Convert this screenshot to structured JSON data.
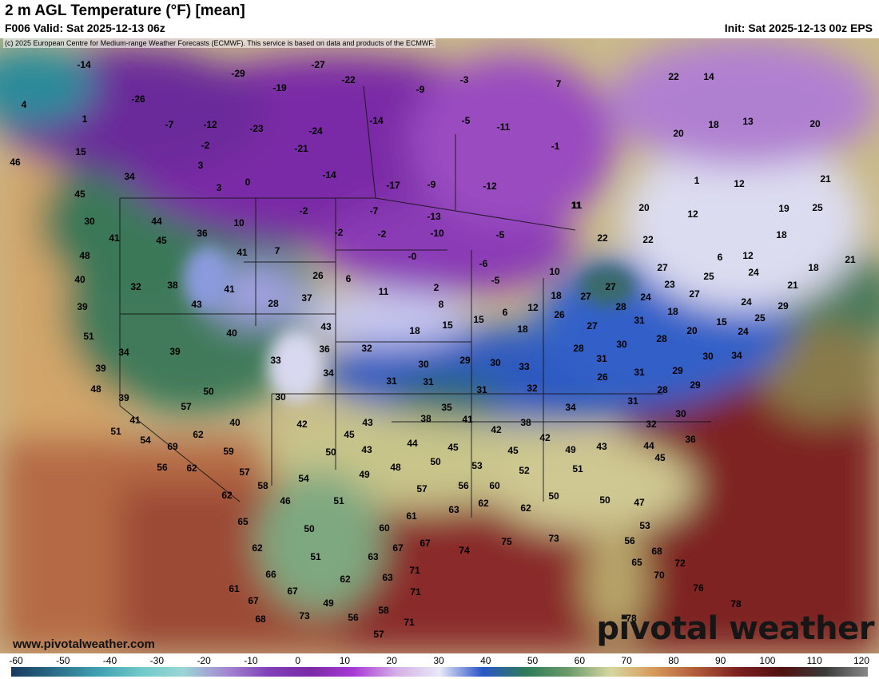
{
  "header": {
    "title": "2 m AGL Temperature (°F) [mean]",
    "valid": "F006 Valid: Sat 2025-12-13 06z",
    "init": "Init: Sat 2025-12-13 00z EPS"
  },
  "credit": "(c) 2025 European Centre for Medium-range Weather Forecasts (ECMWF). This service is based on data and products of the ECMWF.",
  "website": "www.pivotalweather.com",
  "brand": "pivotal weather",
  "colorbar": {
    "ticks": [
      "-60",
      "-50",
      "-40",
      "-30",
      "-20",
      "-10",
      "0",
      "10",
      "20",
      "30",
      "40",
      "50",
      "60",
      "70",
      "80",
      "90",
      "100",
      "110",
      "120"
    ],
    "colors": [
      "#1a3a5c",
      "#2b6c8a",
      "#3f9fb0",
      "#6fc8c8",
      "#9ad6d6",
      "#a58ad0",
      "#8040b8",
      "#7a2ba6",
      "#a83ad6",
      "#d6b0e6",
      "#e8e8f8",
      "#2b55c8",
      "#2e7a5a",
      "#6b9a6a",
      "#d6d6a0",
      "#d69a5a",
      "#b05a3a",
      "#7a2020",
      "#501010",
      "#3a3a3a",
      "#888888"
    ]
  },
  "temperatures": [
    {
      "v": "-14"
    },
    {
      "v": "-29"
    },
    {
      "v": "-27"
    },
    {
      "v": "-22"
    },
    {
      "v": "-9"
    },
    {
      "v": "-3"
    },
    {
      "v": "7"
    },
    {
      "v": "-26"
    },
    {
      "v": "-19"
    },
    {
      "v": "4"
    },
    {
      "v": "1"
    },
    {
      "v": "-7"
    },
    {
      "v": "-12"
    },
    {
      "v": "-23"
    },
    {
      "v": "-24"
    },
    {
      "v": "-14"
    },
    {
      "v": "-5"
    },
    {
      "v": "-11"
    },
    {
      "v": "15"
    },
    {
      "v": "-2"
    },
    {
      "v": "-21"
    },
    {
      "v": "-1"
    },
    {
      "v": "46"
    },
    {
      "v": "3"
    },
    {
      "v": "34"
    },
    {
      "v": "0"
    },
    {
      "v": "-14"
    },
    {
      "v": "-17"
    },
    {
      "v": "-9"
    },
    {
      "v": "-12"
    },
    {
      "v": "3"
    },
    {
      "v": "45"
    },
    {
      "v": "11"
    },
    {
      "v": "-7"
    },
    {
      "v": "-2"
    },
    {
      "v": "-13"
    },
    {
      "v": "30"
    },
    {
      "v": "44"
    },
    {
      "v": "10"
    },
    {
      "v": "-2"
    },
    {
      "v": "-2"
    },
    {
      "v": "-10"
    },
    {
      "v": "-5"
    },
    {
      "v": "36"
    },
    {
      "v": "41"
    },
    {
      "v": "45"
    },
    {
      "v": "48"
    },
    {
      "v": "41"
    },
    {
      "v": "7"
    },
    {
      "v": "-0"
    },
    {
      "v": "-6"
    },
    {
      "v": "40"
    },
    {
      "v": "32"
    },
    {
      "v": "38"
    },
    {
      "v": "26"
    },
    {
      "v": "6"
    },
    {
      "v": "2"
    },
    {
      "v": "-5"
    },
    {
      "v": "39"
    },
    {
      "v": "43"
    },
    {
      "v": "41"
    },
    {
      "v": "28"
    },
    {
      "v": "37"
    },
    {
      "v": "11"
    },
    {
      "v": "8"
    },
    {
      "v": "6"
    },
    {
      "v": "51"
    },
    {
      "v": "40"
    },
    {
      "v": "43"
    },
    {
      "v": "18"
    },
    {
      "v": "15"
    },
    {
      "v": "15"
    },
    {
      "v": "18"
    },
    {
      "v": "34"
    },
    {
      "v": "39"
    },
    {
      "v": "33"
    },
    {
      "v": "36"
    },
    {
      "v": "32"
    },
    {
      "v": "39"
    },
    {
      "v": "34"
    },
    {
      "v": "30"
    },
    {
      "v": "29"
    },
    {
      "v": "30"
    },
    {
      "v": "33"
    },
    {
      "v": "48"
    },
    {
      "v": "31"
    },
    {
      "v": "31"
    },
    {
      "v": "31"
    },
    {
      "v": "50"
    },
    {
      "v": "39"
    },
    {
      "v": "30"
    },
    {
      "v": "32"
    },
    {
      "v": "57"
    },
    {
      "v": "35"
    },
    {
      "v": "41"
    },
    {
      "v": "38"
    },
    {
      "v": "41"
    },
    {
      "v": "42"
    },
    {
      "v": "43"
    },
    {
      "v": "40"
    },
    {
      "v": "43"
    },
    {
      "v": "38"
    },
    {
      "v": "42"
    },
    {
      "v": "42"
    },
    {
      "v": "51"
    },
    {
      "v": "54"
    },
    {
      "v": "69"
    },
    {
      "v": "62"
    },
    {
      "v": "45"
    },
    {
      "v": "44"
    },
    {
      "v": "45"
    },
    {
      "v": "45"
    },
    {
      "v": "49"
    },
    {
      "v": "59"
    },
    {
      "v": "50"
    },
    {
      "v": "43"
    },
    {
      "v": "56"
    },
    {
      "v": "62"
    },
    {
      "v": "57"
    },
    {
      "v": "48"
    },
    {
      "v": "50"
    },
    {
      "v": "53"
    },
    {
      "v": "52"
    },
    {
      "v": "51"
    },
    {
      "v": "49"
    },
    {
      "v": "54"
    },
    {
      "v": "58"
    },
    {
      "v": "62"
    },
    {
      "v": "46"
    },
    {
      "v": "51"
    },
    {
      "v": "57"
    },
    {
      "v": "56"
    },
    {
      "v": "60"
    },
    {
      "v": "50"
    },
    {
      "v": "50"
    },
    {
      "v": "63"
    },
    {
      "v": "62"
    },
    {
      "v": "62"
    },
    {
      "v": "65"
    },
    {
      "v": "50"
    },
    {
      "v": "60"
    },
    {
      "v": "61"
    },
    {
      "v": "62"
    },
    {
      "v": "51"
    },
    {
      "v": "63"
    },
    {
      "v": "67"
    },
    {
      "v": "67"
    },
    {
      "v": "74"
    },
    {
      "v": "75"
    },
    {
      "v": "73"
    },
    {
      "v": "66"
    },
    {
      "v": "67"
    },
    {
      "v": "62"
    },
    {
      "v": "63"
    },
    {
      "v": "71"
    },
    {
      "v": "61"
    },
    {
      "v": "67"
    },
    {
      "v": "49"
    },
    {
      "v": "73"
    },
    {
      "v": "56"
    },
    {
      "v": "58"
    },
    {
      "v": "71"
    },
    {
      "v": "68"
    },
    {
      "v": "57"
    },
    {
      "v": "71"
    },
    {
      "v": "78"
    },
    {
      "v": "20"
    },
    {
      "v": "18"
    },
    {
      "v": "13"
    },
    {
      "v": "14"
    },
    {
      "v": "22"
    },
    {
      "v": "20"
    },
    {
      "v": "1"
    },
    {
      "v": "12"
    },
    {
      "v": "21"
    },
    {
      "v": "20"
    },
    {
      "v": "12"
    },
    {
      "v": "19"
    },
    {
      "v": "25"
    },
    {
      "v": "18"
    },
    {
      "v": "11"
    },
    {
      "v": "22"
    },
    {
      "v": "22"
    },
    {
      "v": "6"
    },
    {
      "v": "12"
    },
    {
      "v": "24"
    },
    {
      "v": "18"
    },
    {
      "v": "21"
    },
    {
      "v": "21"
    },
    {
      "v": "10"
    },
    {
      "v": "27"
    },
    {
      "v": "23"
    },
    {
      "v": "25"
    },
    {
      "v": "18"
    },
    {
      "v": "27"
    },
    {
      "v": "27"
    },
    {
      "v": "24"
    },
    {
      "v": "27"
    },
    {
      "v": "24"
    },
    {
      "v": "29"
    },
    {
      "v": "12"
    },
    {
      "v": "26"
    },
    {
      "v": "28"
    },
    {
      "v": "18"
    },
    {
      "v": "25"
    },
    {
      "v": "27"
    },
    {
      "v": "31"
    },
    {
      "v": "20"
    },
    {
      "v": "15"
    },
    {
      "v": "24"
    },
    {
      "v": "28"
    },
    {
      "v": "30"
    },
    {
      "v": "28"
    },
    {
      "v": "31"
    },
    {
      "v": "30"
    },
    {
      "v": "34"
    },
    {
      "v": "26"
    },
    {
      "v": "31"
    },
    {
      "v": "29"
    },
    {
      "v": "28"
    },
    {
      "v": "29"
    },
    {
      "v": "34"
    },
    {
      "v": "31"
    },
    {
      "v": "30"
    },
    {
      "v": "32"
    },
    {
      "v": "36"
    },
    {
      "v": "45"
    },
    {
      "v": "44"
    },
    {
      "v": "47"
    },
    {
      "v": "53"
    },
    {
      "v": "56"
    },
    {
      "v": "68"
    },
    {
      "v": "65"
    },
    {
      "v": "70"
    },
    {
      "v": "72"
    },
    {
      "v": "76"
    },
    {
      "v": "78"
    }
  ]
}
